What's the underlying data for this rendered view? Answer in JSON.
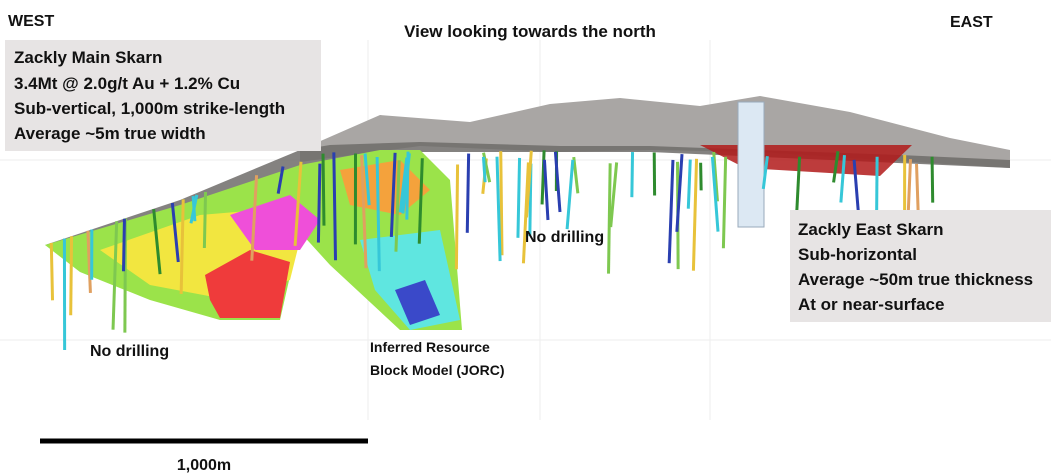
{
  "header": {
    "west": "WEST",
    "title": "View looking towards the north",
    "east": "EAST"
  },
  "main_skarn": {
    "lines": [
      "Zackly Main Skarn",
      "3.4Mt @ 2.0g/t Au + 1.2% Cu",
      "Sub-vertical, 1,000m strike-length",
      "Average ~5m true width"
    ]
  },
  "east_skarn": {
    "lines": [
      "Zackly East Skarn",
      "Sub-horizontal",
      "Average ~50m true thickness",
      "At or near-surface"
    ]
  },
  "annotations": {
    "no_drilling_west": "No drilling",
    "no_drilling_middle": "No drilling",
    "resource_line1": "Inferred Resource",
    "resource_line2": "Block Model (JORC)"
  },
  "scale_bar": {
    "label": "1,000m"
  }
}
